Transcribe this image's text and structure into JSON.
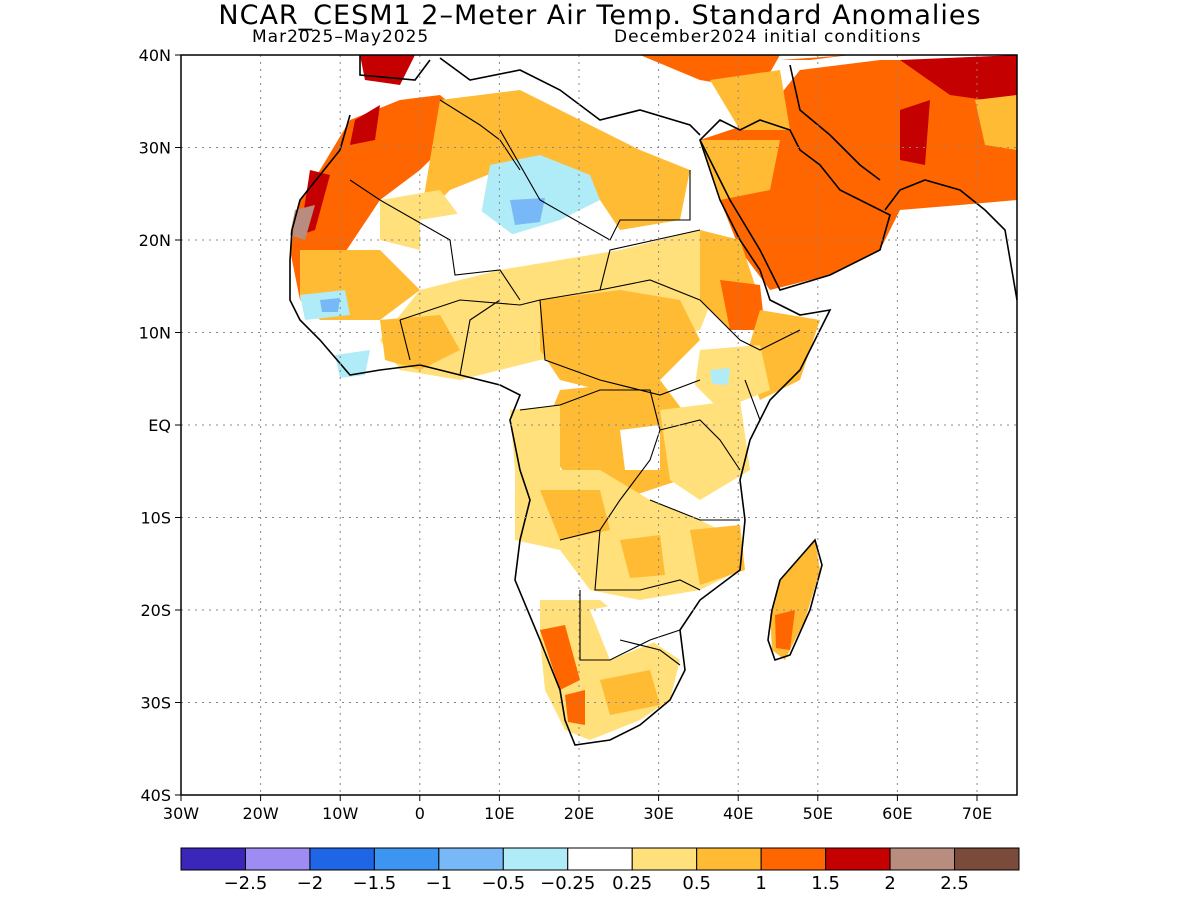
{
  "title": "NCAR_CESM1 2–Meter Air Temp. Standard Anomalies",
  "subtitle_left": "Mar2025–May2025",
  "subtitle_right": "December2024 initial conditions",
  "lat_labels": [
    "40N",
    "30N",
    "20N",
    "10N",
    "EQ",
    "10S",
    "20S",
    "30S",
    "40S"
  ],
  "lon_labels": [
    "30W",
    "20W",
    "10W",
    "0",
    "10E",
    "20E",
    "30E",
    "40E",
    "50E",
    "60E",
    "70E"
  ],
  "colorbar": {
    "colors": [
      "#3a26b8",
      "#9f8cf2",
      "#1f66e6",
      "#3d95f2",
      "#78b8f7",
      "#b0ecf7",
      "#ffffff",
      "#ffe07a",
      "#ffbb33",
      "#ff6600",
      "#c40000",
      "#b88c7e",
      "#7a4a3a"
    ],
    "labels": [
      "−2.5",
      "−2",
      "−1.5",
      "−1",
      "−0.5",
      "−0.25",
      "0.25",
      "0.5",
      "1",
      "1.5",
      "2",
      "2.5"
    ]
  }
}
